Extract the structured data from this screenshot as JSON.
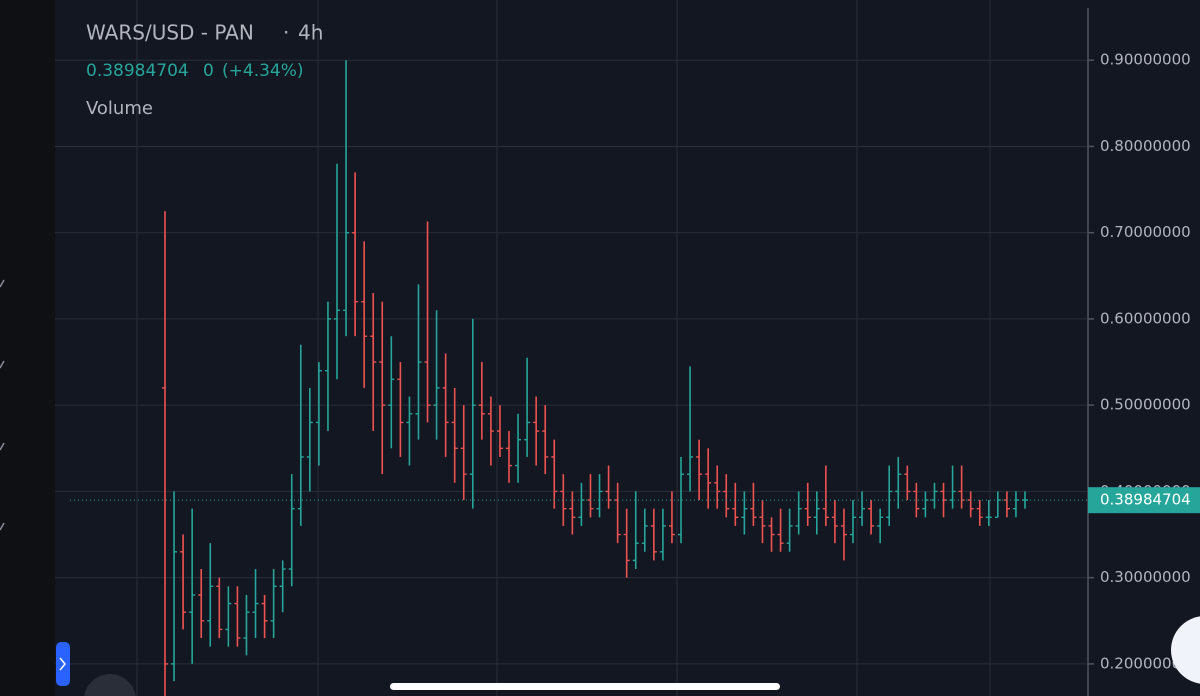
{
  "chart_data": {
    "type": "ohlc",
    "symbol": "WARS/USD - PAN",
    "interval": "4h",
    "last_price_text": "0.38984704",
    "change_text": "0",
    "change_pct_text": "(+4.34%)",
    "volume_label": "Volume",
    "up_color": "#26a69a",
    "down_color": "#ef5350",
    "ylim": [
      0.1628,
      0.9698
    ],
    "yticks": [
      {
        "value": 0.2,
        "label": "0.20000000"
      },
      {
        "value": 0.3,
        "label": "0.30000000"
      },
      {
        "value": 0.4,
        "label": "0.40000000"
      },
      {
        "value": 0.5,
        "label": "0.50000000"
      },
      {
        "value": 0.6,
        "label": "0.60000000"
      },
      {
        "value": 0.7,
        "label": "0.70000000"
      },
      {
        "value": 0.8,
        "label": "0.80000000"
      },
      {
        "value": 0.9,
        "label": "0.90000000"
      }
    ],
    "grid": true,
    "price_line": 0.38984704,
    "ohlc": [
      [
        0.52,
        0.725,
        0.16,
        0.2
      ],
      [
        0.2,
        0.4,
        0.18,
        0.33
      ],
      [
        0.33,
        0.35,
        0.24,
        0.26
      ],
      [
        0.26,
        0.38,
        0.2,
        0.28
      ],
      [
        0.28,
        0.31,
        0.23,
        0.25
      ],
      [
        0.25,
        0.34,
        0.22,
        0.29
      ],
      [
        0.29,
        0.3,
        0.23,
        0.24
      ],
      [
        0.24,
        0.29,
        0.22,
        0.27
      ],
      [
        0.27,
        0.29,
        0.22,
        0.23
      ],
      [
        0.23,
        0.28,
        0.21,
        0.26
      ],
      [
        0.26,
        0.31,
        0.23,
        0.27
      ],
      [
        0.27,
        0.28,
        0.23,
        0.25
      ],
      [
        0.25,
        0.31,
        0.23,
        0.29
      ],
      [
        0.29,
        0.32,
        0.26,
        0.31
      ],
      [
        0.31,
        0.42,
        0.29,
        0.38
      ],
      [
        0.38,
        0.57,
        0.36,
        0.44
      ],
      [
        0.44,
        0.52,
        0.4,
        0.48
      ],
      [
        0.48,
        0.55,
        0.43,
        0.54
      ],
      [
        0.54,
        0.62,
        0.47,
        0.6
      ],
      [
        0.6,
        0.78,
        0.53,
        0.61
      ],
      [
        0.61,
        0.9,
        0.58,
        0.7
      ],
      [
        0.7,
        0.77,
        0.58,
        0.62
      ],
      [
        0.62,
        0.69,
        0.52,
        0.58
      ],
      [
        0.58,
        0.63,
        0.47,
        0.55
      ],
      [
        0.55,
        0.62,
        0.42,
        0.5
      ],
      [
        0.5,
        0.58,
        0.45,
        0.53
      ],
      [
        0.53,
        0.55,
        0.44,
        0.48
      ],
      [
        0.48,
        0.51,
        0.43,
        0.49
      ],
      [
        0.49,
        0.64,
        0.46,
        0.55
      ],
      [
        0.55,
        0.713,
        0.48,
        0.5
      ],
      [
        0.5,
        0.61,
        0.46,
        0.52
      ],
      [
        0.52,
        0.56,
        0.44,
        0.48
      ],
      [
        0.48,
        0.52,
        0.41,
        0.45
      ],
      [
        0.45,
        0.5,
        0.39,
        0.42
      ],
      [
        0.42,
        0.6,
        0.38,
        0.5
      ],
      [
        0.5,
        0.55,
        0.46,
        0.49
      ],
      [
        0.49,
        0.51,
        0.43,
        0.47
      ],
      [
        0.47,
        0.5,
        0.44,
        0.45
      ],
      [
        0.45,
        0.47,
        0.41,
        0.43
      ],
      [
        0.43,
        0.49,
        0.41,
        0.46
      ],
      [
        0.46,
        0.555,
        0.44,
        0.48
      ],
      [
        0.48,
        0.51,
        0.43,
        0.47
      ],
      [
        0.47,
        0.5,
        0.42,
        0.44
      ],
      [
        0.44,
        0.46,
        0.38,
        0.4
      ],
      [
        0.4,
        0.42,
        0.36,
        0.38
      ],
      [
        0.38,
        0.4,
        0.35,
        0.37
      ],
      [
        0.37,
        0.41,
        0.36,
        0.39
      ],
      [
        0.39,
        0.42,
        0.37,
        0.38
      ],
      [
        0.38,
        0.42,
        0.37,
        0.4
      ],
      [
        0.4,
        0.43,
        0.38,
        0.39
      ],
      [
        0.39,
        0.41,
        0.34,
        0.35
      ],
      [
        0.35,
        0.38,
        0.3,
        0.32
      ],
      [
        0.32,
        0.4,
        0.31,
        0.34
      ],
      [
        0.34,
        0.38,
        0.33,
        0.36
      ],
      [
        0.36,
        0.38,
        0.32,
        0.33
      ],
      [
        0.33,
        0.38,
        0.32,
        0.36
      ],
      [
        0.36,
        0.4,
        0.34,
        0.35
      ],
      [
        0.35,
        0.44,
        0.34,
        0.42
      ],
      [
        0.42,
        0.545,
        0.4,
        0.44
      ],
      [
        0.44,
        0.46,
        0.39,
        0.42
      ],
      [
        0.42,
        0.45,
        0.38,
        0.41
      ],
      [
        0.41,
        0.43,
        0.38,
        0.4
      ],
      [
        0.4,
        0.42,
        0.37,
        0.38
      ],
      [
        0.38,
        0.41,
        0.36,
        0.37
      ],
      [
        0.37,
        0.4,
        0.35,
        0.38
      ],
      [
        0.38,
        0.41,
        0.36,
        0.37
      ],
      [
        0.37,
        0.39,
        0.34,
        0.36
      ],
      [
        0.36,
        0.37,
        0.33,
        0.35
      ],
      [
        0.35,
        0.38,
        0.33,
        0.34
      ],
      [
        0.34,
        0.38,
        0.33,
        0.36
      ],
      [
        0.36,
        0.4,
        0.35,
        0.38
      ],
      [
        0.38,
        0.41,
        0.36,
        0.37
      ],
      [
        0.37,
        0.4,
        0.35,
        0.38
      ],
      [
        0.38,
        0.43,
        0.36,
        0.37
      ],
      [
        0.37,
        0.39,
        0.34,
        0.36
      ],
      [
        0.36,
        0.38,
        0.32,
        0.35
      ],
      [
        0.35,
        0.39,
        0.34,
        0.37
      ],
      [
        0.37,
        0.4,
        0.36,
        0.38
      ],
      [
        0.38,
        0.39,
        0.35,
        0.36
      ],
      [
        0.36,
        0.38,
        0.34,
        0.37
      ],
      [
        0.37,
        0.43,
        0.36,
        0.4
      ],
      [
        0.4,
        0.44,
        0.38,
        0.42
      ],
      [
        0.42,
        0.43,
        0.39,
        0.4
      ],
      [
        0.4,
        0.41,
        0.37,
        0.38
      ],
      [
        0.38,
        0.4,
        0.37,
        0.39
      ],
      [
        0.39,
        0.41,
        0.38,
        0.4
      ],
      [
        0.4,
        0.41,
        0.37,
        0.39
      ],
      [
        0.39,
        0.43,
        0.38,
        0.4
      ],
      [
        0.4,
        0.43,
        0.38,
        0.39
      ],
      [
        0.39,
        0.4,
        0.37,
        0.38
      ],
      [
        0.38,
        0.39,
        0.36,
        0.37
      ],
      [
        0.37,
        0.39,
        0.36,
        0.37
      ],
      [
        0.37,
        0.4,
        0.37,
        0.39
      ],
      [
        0.39,
        0.4,
        0.37,
        0.38
      ],
      [
        0.38,
        0.4,
        0.37,
        0.39
      ],
      [
        0.39,
        0.4,
        0.38,
        0.39
      ]
    ]
  }
}
